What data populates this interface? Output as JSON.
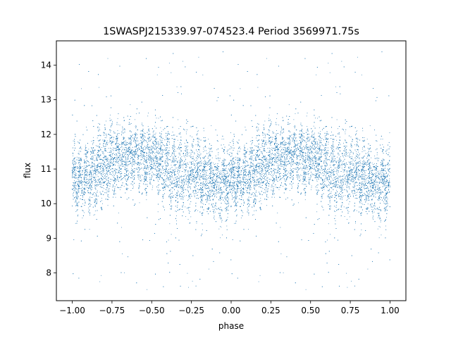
{
  "chart_data": {
    "type": "scatter",
    "title": "1SWASPJ215339.97-074523.4 Period 3569971.75s",
    "xlabel": "phase",
    "ylabel": "flux",
    "xlim": [
      -1.1,
      1.1
    ],
    "ylim": [
      7.2,
      14.7
    ],
    "xticks": [
      -1.0,
      -0.75,
      -0.5,
      -0.25,
      0.0,
      0.25,
      0.5,
      0.75,
      1.0
    ],
    "xtick_labels": [
      "−1.00",
      "−0.75",
      "−0.50",
      "−0.25",
      "0.00",
      "0.25",
      "0.50",
      "0.75",
      "1.00"
    ],
    "yticks": [
      8,
      9,
      10,
      11,
      12,
      13,
      14
    ],
    "ytick_labels": [
      "8",
      "9",
      "10",
      "11",
      "12",
      "13",
      "14"
    ],
    "grid": false,
    "legend": "none",
    "color": "#1f77b4",
    "series_profile": {
      "phase": [
        0.0,
        0.1,
        0.2,
        0.3,
        0.4,
        0.5,
        0.6,
        0.7,
        0.8,
        0.9,
        1.0
      ],
      "mean_flux": [
        10.6,
        10.8,
        11.1,
        11.3,
        11.4,
        11.3,
        11.0,
        10.9,
        10.8,
        10.6,
        10.6
      ],
      "scatter": [
        0.45,
        0.45,
        0.5,
        0.45,
        0.4,
        0.4,
        0.5,
        0.55,
        0.5,
        0.45,
        0.45
      ],
      "outlier_range": [
        7.5,
        14.4
      ],
      "points_per_half": 9000
    }
  }
}
